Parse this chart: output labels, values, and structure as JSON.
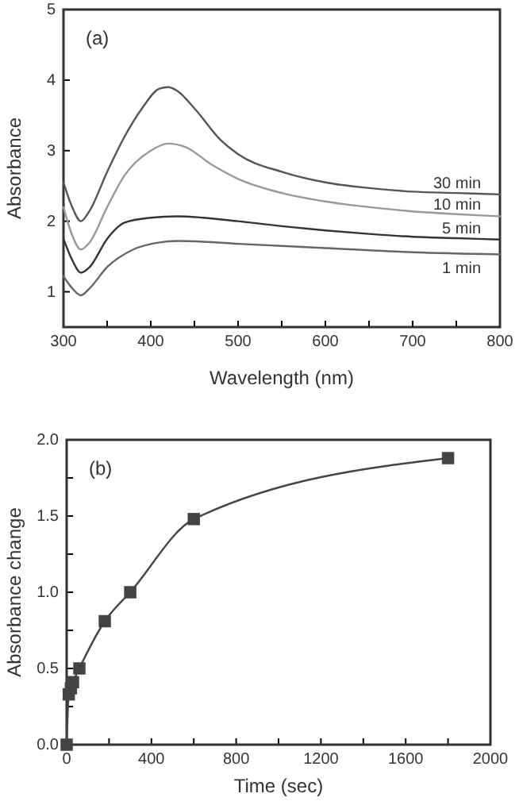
{
  "chart_data": [
    {
      "type": "line",
      "xlabel": "Wavelength (nm)",
      "ylabel": "Absorbance",
      "annotations": [
        "(a)"
      ],
      "xlim": [
        300,
        800
      ],
      "ylim": [
        0.5,
        5
      ],
      "xticks": [
        300,
        {
          "value": 350,
          "label": null
        },
        400,
        {
          "value": 450,
          "label": null
        },
        500,
        {
          "value": 550,
          "label": null
        },
        600,
        {
          "value": 650,
          "label": null
        },
        700,
        {
          "value": 750,
          "label": null
        },
        800
      ],
      "yticks": [
        1,
        2,
        3,
        4,
        5
      ],
      "grid": false,
      "legend": false,
      "marker": "none",
      "line_style": "solid",
      "series": [
        {
          "name": "30 min",
          "color": "#555555",
          "x": [
            300,
            310,
            320,
            330,
            350,
            370,
            390,
            410,
            420,
            430,
            450,
            480,
            500,
            550,
            600,
            650,
            700,
            750,
            800
          ],
          "values": [
            2.55,
            2.2,
            2.0,
            2.15,
            2.7,
            3.2,
            3.6,
            3.88,
            3.9,
            3.85,
            3.6,
            3.15,
            2.95,
            2.7,
            2.55,
            2.47,
            2.42,
            2.4,
            2.38
          ]
        },
        {
          "name": "10 min",
          "color": "#999999",
          "x": [
            300,
            310,
            320,
            330,
            350,
            370,
            400,
            420,
            440,
            470,
            500,
            550,
            600,
            650,
            700,
            750,
            800
          ],
          "values": [
            2.2,
            1.8,
            1.6,
            1.7,
            2.2,
            2.65,
            3.0,
            3.1,
            3.05,
            2.8,
            2.6,
            2.4,
            2.28,
            2.2,
            2.14,
            2.1,
            2.07
          ]
        },
        {
          "name": "5 min",
          "color": "#333333",
          "x": [
            300,
            310,
            320,
            330,
            350,
            370,
            400,
            430,
            460,
            500,
            550,
            600,
            650,
            700,
            750,
            800
          ],
          "values": [
            1.75,
            1.45,
            1.27,
            1.35,
            1.75,
            1.98,
            2.05,
            2.07,
            2.05,
            2.0,
            1.93,
            1.87,
            1.82,
            1.78,
            1.76,
            1.74
          ]
        },
        {
          "name": "1 min",
          "color": "#666666",
          "x": [
            300,
            310,
            320,
            330,
            350,
            380,
            410,
            430,
            460,
            500,
            600,
            700,
            800
          ],
          "values": [
            1.22,
            1.05,
            0.95,
            1.05,
            1.35,
            1.6,
            1.7,
            1.72,
            1.71,
            1.68,
            1.62,
            1.56,
            1.53
          ]
        }
      ]
    },
    {
      "type": "line",
      "xlabel": "Time (sec)",
      "ylabel": "Absorbance change",
      "annotations": [
        "(b)"
      ],
      "xlim": [
        0,
        2000
      ],
      "ylim": [
        0,
        2
      ],
      "xticks": [
        0,
        {
          "value": 200,
          "label": null
        },
        400,
        {
          "value": 600,
          "label": null
        },
        800,
        {
          "value": 1000,
          "label": null
        },
        1200,
        {
          "value": 1400,
          "label": null
        },
        1600,
        {
          "value": 1800,
          "label": null
        },
        2000
      ],
      "yticks": [
        {
          "value": 0,
          "label": "0.0"
        },
        {
          "value": 0.25,
          "label": null
        },
        {
          "value": 0.5,
          "label": "0.5"
        },
        {
          "value": 0.75,
          "label": null
        },
        {
          "value": 1,
          "label": "1.0"
        },
        {
          "value": 1.25,
          "label": null
        },
        {
          "value": 1.5,
          "label": "1.5"
        },
        {
          "value": 1.75,
          "label": null
        },
        {
          "value": 2,
          "label": "2.0"
        }
      ],
      "grid": false,
      "legend": false,
      "marker": "square",
      "line_style": "solid",
      "series": [
        {
          "color": "#444444",
          "x": [
            0,
            10,
            20,
            30,
            60,
            180,
            300,
            600,
            1800
          ],
          "values": [
            0,
            0.33,
            0.37,
            0.41,
            0.5,
            0.81,
            1.0,
            1.48,
            1.88
          ]
        }
      ]
    }
  ]
}
